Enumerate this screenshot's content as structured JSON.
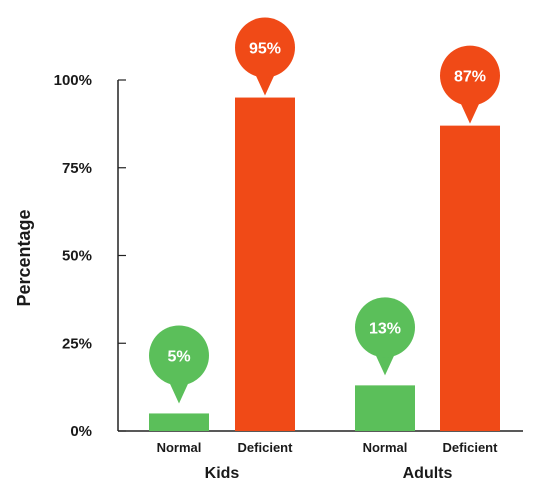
{
  "chart_data": {
    "type": "bar",
    "ylabel": "Percentage",
    "ylim": [
      0,
      100
    ],
    "yticks": [
      "0%",
      "25%",
      "50%",
      "75%",
      "100%"
    ],
    "ytick_values": [
      0,
      25,
      50,
      75,
      100
    ],
    "groups": [
      {
        "name": "Kids",
        "bars": [
          {
            "category": "Normal",
            "value": 5,
            "label": "5%"
          },
          {
            "category": "Deficient",
            "value": 95,
            "label": "95%"
          }
        ]
      },
      {
        "name": "Adults",
        "bars": [
          {
            "category": "Normal",
            "value": 13,
            "label": "13%"
          },
          {
            "category": "Deficient",
            "value": 87,
            "label": "87%"
          }
        ]
      }
    ],
    "colors": {
      "Normal": "#5bbf5a",
      "Deficient": "#f04a17"
    },
    "grid": false,
    "legend": "none"
  }
}
